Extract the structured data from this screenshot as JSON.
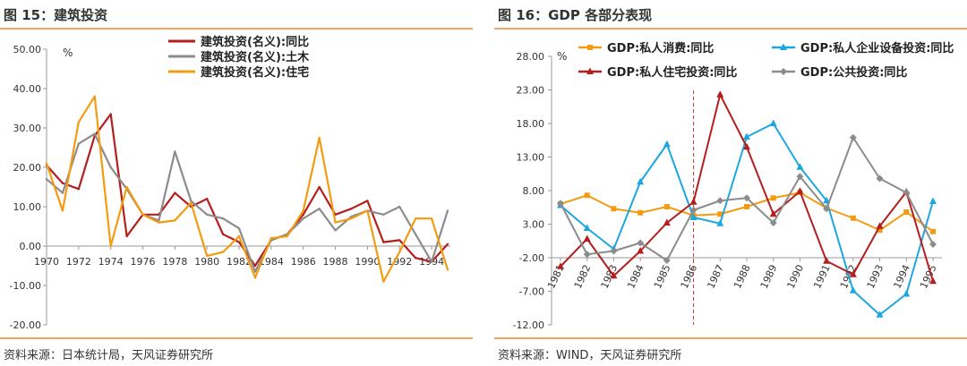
{
  "panels": [
    {
      "title": "图 15：建筑投资",
      "source": "资料来源：日本统计局，天风证券研究所"
    },
    {
      "title": "图 16：GDP 各部分表现",
      "source": "资料来源：WIND，天风证券研究所"
    }
  ],
  "chart_data": [
    {
      "type": "line",
      "title": "",
      "xlabel": "",
      "ylabel": "%",
      "ylim": [
        -20,
        50
      ],
      "yticks": [
        "50.00",
        "40.00",
        "30.00",
        "20.00",
        "10.00",
        "0.00",
        "-10.00",
        "-20.00"
      ],
      "xticks": [
        "1970",
        "1972",
        "1974",
        "1976",
        "1978",
        "1980",
        "1982",
        "1984",
        "1986",
        "1988",
        "1990",
        "1992",
        "1994"
      ],
      "x": [
        1970,
        1971,
        1972,
        1973,
        1974,
        1975,
        1976,
        1977,
        1978,
        1979,
        1980,
        1981,
        1982,
        1983,
        1984,
        1985,
        1986,
        1987,
        1988,
        1989,
        1990,
        1991,
        1992,
        1993,
        1994,
        1995
      ],
      "grid": false,
      "legend_position": "top-center",
      "series": [
        {
          "name": "建筑投资(名义):同比",
          "color": "#b41e1e",
          "values": [
            20.5,
            16.0,
            14.5,
            28.0,
            33.5,
            2.5,
            8.0,
            8.0,
            13.5,
            10.0,
            12.0,
            3.0,
            1.0,
            -5.0,
            1.5,
            3.0,
            8.0,
            15.0,
            8.0,
            9.5,
            11.5,
            1.0,
            1.5,
            -3.0,
            -4.0,
            0.5
          ]
        },
        {
          "name": "建筑投资(名义):土木",
          "color": "#8c8c8c",
          "values": [
            17.0,
            13.5,
            26.0,
            28.5,
            20.0,
            14.5,
            8.0,
            6.5,
            24.0,
            11.5,
            8.0,
            7.0,
            4.5,
            -6.5,
            1.5,
            3.0,
            7.0,
            9.5,
            4.0,
            7.5,
            9.0,
            8.0,
            10.0,
            3.0,
            -4.0,
            9.0
          ]
        },
        {
          "name": "建筑投资(名义):住宅",
          "color": "#f39c12",
          "values": [
            21.0,
            9.0,
            31.5,
            38.0,
            0.0,
            15.0,
            8.0,
            6.0,
            6.5,
            11.0,
            -2.5,
            -1.5,
            2.5,
            -8.0,
            2.0,
            2.5,
            9.0,
            27.5,
            6.0,
            7.0,
            9.0,
            -9.0,
            -1.5,
            7.0,
            7.0,
            -6.0
          ]
        }
      ]
    },
    {
      "type": "line",
      "title": "",
      "xlabel": "",
      "ylabel": "%",
      "ylim": [
        -12,
        28
      ],
      "yticks": [
        "28.00",
        "23.00",
        "18.00",
        "13.00",
        "8.00",
        "3.00",
        "-2.00",
        "-7.00",
        "-12.00"
      ],
      "x": [
        "1981",
        "1982",
        "1983",
        "1984",
        "1985",
        "1986",
        "1987",
        "1988",
        "1989",
        "1990",
        "1991",
        "1992",
        "1993",
        "1994",
        "1995"
      ],
      "xticks": [
        "1981",
        "1982",
        "1983",
        "1984",
        "1985",
        "1986",
        "1987",
        "1988",
        "1989",
        "1990",
        "1991",
        "1992",
        "1993",
        "1994",
        "1995"
      ],
      "reference_line_x": "1986",
      "grid": false,
      "legend_position": "top",
      "series": [
        {
          "name": "GDP:私人消费:同比",
          "color": "#f39c12",
          "marker": "square",
          "values": [
            6.0,
            7.3,
            5.3,
            4.7,
            5.6,
            4.3,
            4.5,
            5.6,
            6.9,
            7.7,
            5.4,
            3.9,
            2.1,
            4.8,
            1.9
          ]
        },
        {
          "name": "GDP:私人企业设备投资:同比",
          "color": "#1da7e0",
          "marker": "triangle",
          "values": [
            5.8,
            2.4,
            -0.7,
            9.3,
            14.9,
            4.0,
            3.1,
            16.0,
            18.0,
            11.5,
            6.5,
            -6.9,
            -10.5,
            -7.4,
            6.4
          ]
        },
        {
          "name": "GDP:私人住宅投资:同比",
          "color": "#b41e1e",
          "marker": "triangle",
          "values": [
            -3.3,
            0.8,
            -4.7,
            -1.0,
            3.2,
            6.3,
            22.3,
            14.5,
            4.5,
            7.9,
            -2.5,
            -4.5,
            2.7,
            7.8,
            -5.5
          ]
        },
        {
          "name": "GDP:公共投资:同比",
          "color": "#8c8c8c",
          "marker": "diamond",
          "values": [
            6.1,
            -1.5,
            -1.0,
            0.2,
            -2.4,
            5.1,
            6.5,
            6.9,
            3.2,
            10.1,
            5.3,
            15.9,
            9.8,
            7.7,
            0.0
          ]
        }
      ]
    }
  ]
}
